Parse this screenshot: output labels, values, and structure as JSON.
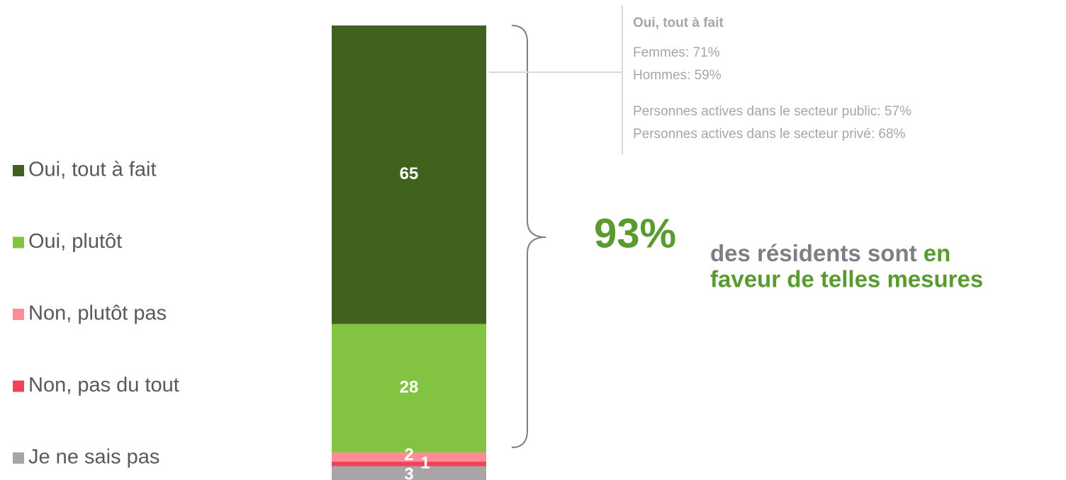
{
  "chart_data": {
    "type": "stacked-bar",
    "series": [
      {
        "name": "Oui, tout à fait",
        "color": "#41621f",
        "values": [
          65
        ]
      },
      {
        "name": "Oui, plutôt",
        "color": "#82c341",
        "values": [
          28
        ]
      },
      {
        "name": "Non, plutôt pas",
        "color": "#ff8c96",
        "values": [
          2
        ]
      },
      {
        "name": "Non, pas du tout",
        "color": "#f0425a",
        "values": [
          1
        ]
      },
      {
        "name": "Je ne sais pas",
        "color": "#a6a6a6",
        "values": [
          3
        ]
      }
    ],
    "legend": "left",
    "breakdown": {
      "title": "Oui, tout à fait",
      "lines": [
        "Femmes: 71%",
        "Hommes: 59%",
        "Personnes actives dans le secteur public: 57%",
        "Personnes actives dans le secteur privé: 68%"
      ]
    },
    "highlight": {
      "value": 93,
      "label": "93%",
      "text": "des résidents sont",
      "emphasis": [
        "en",
        "faveur de telles mesures"
      ]
    }
  }
}
